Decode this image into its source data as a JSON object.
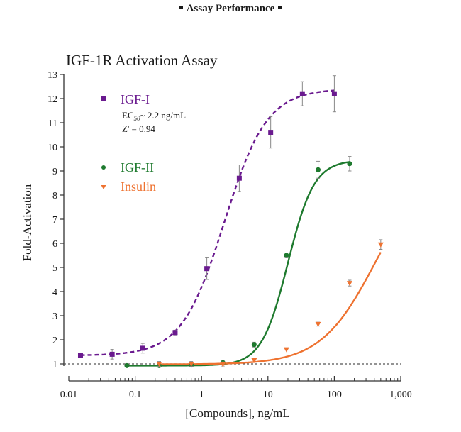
{
  "header": {
    "title": "Assay Performance"
  },
  "chart_data": {
    "type": "scatter",
    "title": "IGF-1R Activation Assay",
    "xlabel": "[Compounds], ng/mL",
    "ylabel": "Fold-Activation",
    "xscale": "log",
    "xlim": [
      0.01,
      1000
    ],
    "ylim": [
      1,
      13
    ],
    "x_ticks": [
      0.01,
      0.1,
      1,
      10,
      100,
      1000
    ],
    "x_tick_labels": [
      "0.01",
      "0.1",
      "1",
      "10",
      "100",
      "1,000"
    ],
    "y_ticks": [
      1,
      2,
      3,
      4,
      5,
      6,
      7,
      8,
      9,
      10,
      11,
      12,
      13
    ],
    "y_tick_labels": [
      "1",
      "2",
      "3",
      "4",
      "5",
      "6",
      "7",
      "8",
      "9",
      "10",
      "11",
      "12",
      "13"
    ],
    "baseline": 1,
    "legend_placement": "top-left",
    "annotations": {
      "ec50_prefix": "EC",
      "ec50_sub": "50",
      "ec50_value": "~ 2.2 ng/mL",
      "zprime": "Z' = 0.94"
    },
    "series": [
      {
        "name": "IGF-I",
        "color": "#6a1a8f",
        "marker": "square",
        "line": "dashed",
        "fit": {
          "bottom": 1.35,
          "top": 12.4,
          "ec50": 2.2,
          "hill": 1.35
        },
        "x": [
          0.015,
          0.045,
          0.13,
          0.4,
          1.2,
          3.7,
          11,
          33,
          100
        ],
        "y": [
          1.35,
          1.4,
          1.65,
          2.3,
          4.95,
          8.7,
          10.6,
          12.2,
          12.2
        ],
        "err": [
          0.05,
          0.2,
          0.2,
          0.1,
          0.45,
          0.55,
          0.65,
          0.5,
          0.75
        ]
      },
      {
        "name": "IGF-II",
        "color": "#1e7a2e",
        "marker": "circle",
        "line": "solid",
        "fit": {
          "bottom": 0.93,
          "top": 9.45,
          "ec50": 20,
          "hill": 2.2
        },
        "x": [
          0.075,
          0.23,
          0.7,
          2.1,
          6.2,
          19,
          57,
          170
        ],
        "y": [
          0.93,
          0.93,
          0.95,
          1.05,
          1.8,
          5.5,
          9.05,
          9.3
        ],
        "err": [
          0.03,
          0.05,
          0.05,
          0.1,
          0.1,
          0.1,
          0.35,
          0.3
        ]
      },
      {
        "name": "Insulin",
        "color": "#ee7230",
        "marker": "triangle-down",
        "line": "solid",
        "fit": {
          "bottom": 0.98,
          "top": 9.5,
          "ec50": 420,
          "hill": 1.05
        },
        "x": [
          0.23,
          0.7,
          2.1,
          6.2,
          19,
          57,
          170,
          500
        ],
        "y": [
          1.0,
          1.0,
          0.98,
          1.15,
          1.6,
          2.65,
          4.35,
          5.95
        ],
        "err": [
          0.1,
          0.1,
          0.1,
          0.05,
          0.05,
          0.08,
          0.12,
          0.2
        ]
      }
    ]
  }
}
